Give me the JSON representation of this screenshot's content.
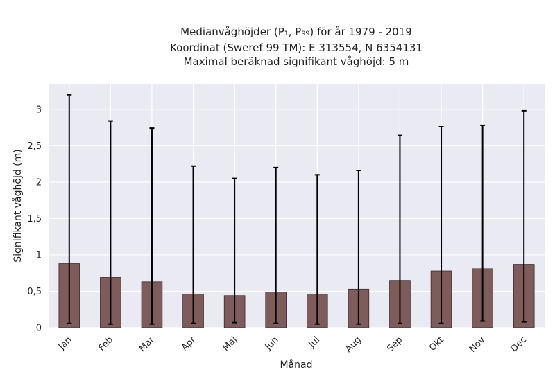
{
  "chart_data": {
    "type": "bar",
    "title_lines": [
      "Medianvåghöjder (P₁, P₉₉) för år 1979 - 2019",
      "Koordinat (Sweref 99 TM): E 313554, N 6354131",
      "Maximal beräknad signifikant våghöjd: 5 m"
    ],
    "xlabel": "Månad",
    "ylabel": "Signifikant våghöjd (m)",
    "categories": [
      "Jan",
      "Feb",
      "Mar",
      "Apr",
      "Maj",
      "Jun",
      "Jul",
      "Aug",
      "Sep",
      "Okt",
      "Nov",
      "Dec"
    ],
    "values": [
      0.88,
      0.69,
      0.63,
      0.46,
      0.44,
      0.49,
      0.46,
      0.53,
      0.65,
      0.78,
      0.81,
      0.87
    ],
    "p1": [
      0.06,
      0.05,
      0.05,
      0.06,
      0.07,
      0.06,
      0.05,
      0.05,
      0.06,
      0.06,
      0.09,
      0.08
    ],
    "p99": [
      3.2,
      2.84,
      2.74,
      2.22,
      2.05,
      2.2,
      2.1,
      2.16,
      2.64,
      2.76,
      2.78,
      2.98
    ],
    "ylim": [
      0,
      3.35
    ],
    "yticks": [
      0,
      0.5,
      1,
      1.5,
      2,
      2.5,
      3
    ],
    "ytick_labels": [
      "0",
      "0,5",
      "1",
      "1,5",
      "2",
      "2,5",
      "3"
    ],
    "grid": true,
    "bar_color": "#7e5c5c",
    "bar_edge_color": "#3a2a2a",
    "errorbar_color": "#000000",
    "plot_background": "#eaeaf2",
    "grid_color": "#ffffff"
  }
}
